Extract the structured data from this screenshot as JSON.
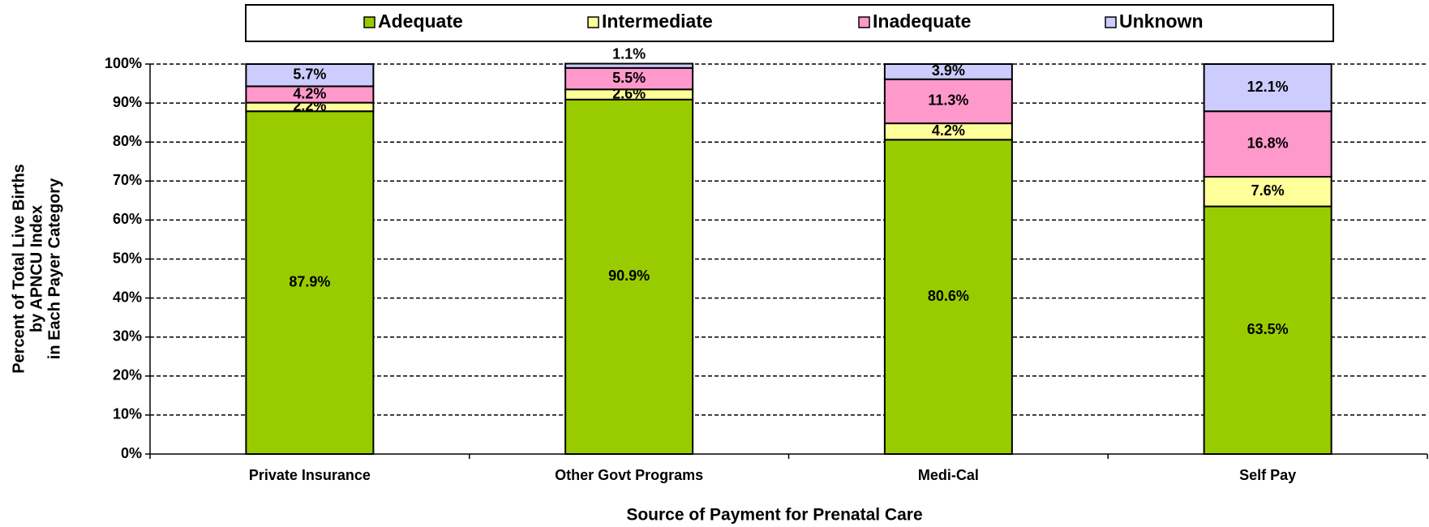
{
  "chart_data": {
    "type": "stacked_bar",
    "xlabel": "Source of Payment for Prenatal Care",
    "ylabel": [
      "Percent of Total Live Births",
      "by APNCU Index",
      "in Each Payer Category"
    ],
    "categories": [
      "Private Insurance",
      "Other Govt Programs",
      "Medi-Cal",
      "Self Pay"
    ],
    "series": [
      {
        "name": "Adequate",
        "color": "#99cc00",
        "values": [
          87.9,
          90.9,
          80.6,
          63.5
        ],
        "value_labels": [
          "87.9%",
          "90.9%",
          "80.6%",
          "63.5%"
        ]
      },
      {
        "name": "Intermediate",
        "color": "#ffff99",
        "values": [
          2.2,
          2.6,
          4.2,
          7.6
        ],
        "value_labels": [
          "2.2%",
          "2.6%",
          "4.2%",
          "7.6%"
        ]
      },
      {
        "name": "Inadequate",
        "color": "#ff99cc",
        "values": [
          4.2,
          5.5,
          11.3,
          16.8
        ],
        "value_labels": [
          "4.2%",
          "5.5%",
          "11.3%",
          "16.8%"
        ]
      },
      {
        "name": "Unknown",
        "color": "#ccccff",
        "values": [
          5.7,
          1.1,
          3.9,
          12.1
        ],
        "value_labels": [
          "5.7%",
          "1.1%",
          "3.9%",
          "12.1%"
        ]
      }
    ],
    "ylim": [
      0,
      100
    ],
    "yticks": [
      {
        "value": 0,
        "label": "0%"
      },
      {
        "value": 10,
        "label": "10%"
      },
      {
        "value": 20,
        "label": "20%"
      },
      {
        "value": 30,
        "label": "30%"
      },
      {
        "value": 40,
        "label": "40%"
      },
      {
        "value": 50,
        "label": "50%"
      },
      {
        "value": 60,
        "label": "60%"
      },
      {
        "value": 70,
        "label": "70%"
      },
      {
        "value": 80,
        "label": "80%"
      },
      {
        "value": 90,
        "label": "90%"
      },
      {
        "value": 100,
        "label": "100%"
      }
    ],
    "grid": true,
    "legend": "top"
  }
}
